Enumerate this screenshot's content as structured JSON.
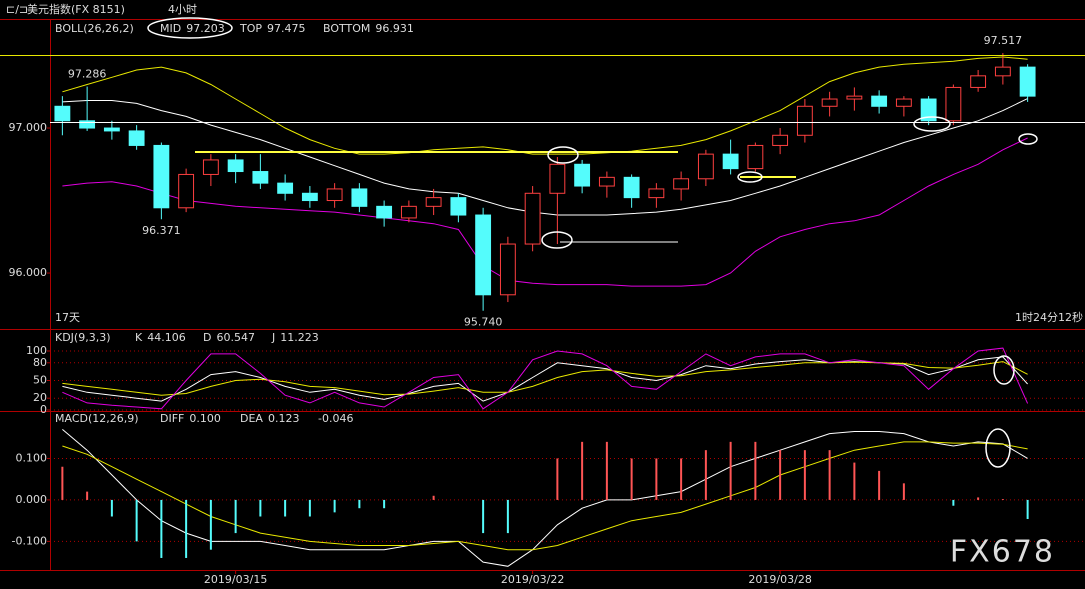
{
  "watermark": "FX678",
  "chart_data": [
    {
      "type": "candlestick",
      "title": "美元指数(FX 8151)",
      "subtitle": "4小时",
      "indicator": "BOLL(26,26,2)",
      "categories": [
        null,
        null,
        null,
        null,
        null,
        null,
        null,
        "2019/03/15",
        null,
        null,
        null,
        null,
        null,
        null,
        null,
        null,
        null,
        null,
        null,
        "2019/03/22",
        null,
        null,
        null,
        null,
        null,
        null,
        null,
        null,
        null,
        "2019/03/28",
        null,
        null,
        null,
        null,
        null,
        null,
        null,
        null,
        null,
        null
      ],
      "open": [
        97.15,
        97.05,
        97.0,
        96.98,
        96.88,
        96.45,
        96.68,
        96.78,
        96.7,
        96.62,
        96.55,
        96.5,
        96.58,
        96.46,
        96.38,
        96.46,
        96.52,
        96.4,
        95.85,
        96.2,
        96.55,
        96.75,
        96.6,
        96.66,
        96.52,
        96.58,
        96.65,
        96.82,
        96.72,
        96.88,
        96.95,
        97.15,
        97.2,
        97.22,
        97.15,
        97.2,
        97.05,
        97.28,
        97.36,
        97.42
      ],
      "high": [
        97.22,
        97.286,
        97.05,
        97.02,
        96.9,
        96.72,
        96.82,
        96.82,
        96.82,
        96.68,
        96.6,
        96.62,
        96.62,
        96.5,
        96.5,
        96.58,
        96.55,
        96.45,
        96.25,
        96.6,
        96.8,
        96.78,
        96.7,
        96.68,
        96.62,
        96.7,
        96.85,
        96.92,
        96.9,
        97.0,
        97.2,
        97.25,
        97.28,
        97.26,
        97.22,
        97.22,
        97.3,
        97.4,
        97.517,
        97.44
      ],
      "low": [
        96.95,
        96.98,
        96.92,
        96.85,
        96.371,
        96.42,
        96.6,
        96.62,
        96.58,
        96.5,
        96.45,
        96.45,
        96.42,
        96.32,
        96.35,
        96.4,
        96.35,
        95.74,
        95.8,
        96.15,
        96.2,
        96.55,
        96.52,
        96.45,
        96.45,
        96.5,
        96.6,
        96.68,
        96.7,
        96.82,
        96.9,
        97.08,
        97.12,
        97.1,
        97.08,
        97.02,
        97.02,
        97.25,
        97.3,
        97.18
      ],
      "close": [
        97.05,
        97.0,
        96.98,
        96.88,
        96.45,
        96.68,
        96.78,
        96.7,
        96.62,
        96.55,
        96.5,
        96.58,
        96.46,
        96.38,
        96.46,
        96.52,
        96.4,
        95.85,
        96.2,
        96.55,
        96.75,
        96.6,
        96.66,
        96.52,
        96.58,
        96.65,
        96.82,
        96.72,
        96.88,
        96.95,
        97.15,
        97.2,
        97.22,
        97.15,
        97.2,
        97.05,
        97.28,
        97.36,
        97.42,
        97.22
      ],
      "color_up": "#ff4040",
      "color_down": "#54fcfc",
      "series": [
        {
          "name": "MID",
          "last_label": "97.203",
          "color": "#ffffff",
          "values": [
            97.18,
            97.19,
            97.19,
            97.17,
            97.12,
            97.08,
            97.02,
            96.97,
            96.92,
            96.86,
            96.8,
            96.74,
            96.68,
            96.62,
            96.58,
            96.56,
            96.55,
            96.5,
            96.45,
            96.42,
            96.4,
            96.4,
            96.4,
            96.41,
            96.42,
            96.44,
            96.47,
            96.5,
            96.55,
            96.6,
            96.66,
            96.72,
            96.78,
            96.84,
            96.9,
            96.95,
            97.0,
            97.05,
            97.12,
            97.203
          ]
        },
        {
          "name": "TOP",
          "last_label": "97.475",
          "color": "#e8e800",
          "values": [
            97.25,
            97.3,
            97.35,
            97.4,
            97.42,
            97.38,
            97.3,
            97.2,
            97.1,
            97.0,
            96.92,
            96.86,
            96.82,
            96.82,
            96.83,
            96.85,
            96.86,
            96.87,
            96.85,
            96.82,
            96.82,
            96.82,
            96.83,
            96.84,
            96.86,
            96.88,
            96.92,
            96.98,
            97.05,
            97.12,
            97.22,
            97.32,
            97.38,
            97.42,
            97.44,
            97.45,
            97.46,
            97.48,
            97.49,
            97.475
          ]
        },
        {
          "name": "BOTTOM",
          "last_label": "96.931",
          "color": "#e000e0",
          "values": [
            96.6,
            96.62,
            96.63,
            96.6,
            96.55,
            96.5,
            96.48,
            96.46,
            96.45,
            96.44,
            96.43,
            96.42,
            96.4,
            96.38,
            96.36,
            96.34,
            96.3,
            96.05,
            95.95,
            95.93,
            95.92,
            95.92,
            95.92,
            95.91,
            95.91,
            95.91,
            95.92,
            96.0,
            96.15,
            96.25,
            96.3,
            96.34,
            96.36,
            96.4,
            96.5,
            96.6,
            96.68,
            96.75,
            96.85,
            96.931
          ]
        }
      ],
      "annotations": [
        {
          "value": 97.286,
          "label": "97.286",
          "color": "#ff4040"
        },
        {
          "value": 96.371,
          "label": "96.371",
          "color": "#54fcfc"
        },
        {
          "value": 95.74,
          "label": "95.740",
          "color": "#54fcfc"
        },
        {
          "value": 97.517,
          "label": "97.517",
          "color": "#ff4040"
        }
      ],
      "footer_left": "17天",
      "footer_right": "1时24分12秒",
      "ylim": [
        95.621,
        97.745
      ],
      "yticks": [
        {
          "value": 97,
          "label": "97.000"
        },
        {
          "value": 96,
          "label": "96.000"
        }
      ],
      "grid": false
    },
    {
      "type": "line",
      "indicator": "KDJ(9,3,3)",
      "series": [
        {
          "name": "K",
          "last_label": "44.106",
          "color": "#ffffff",
          "values": [
            40,
            30,
            25,
            20,
            15,
            35,
            60,
            65,
            55,
            40,
            30,
            35,
            25,
            18,
            28,
            40,
            45,
            15,
            30,
            55,
            80,
            75,
            70,
            55,
            50,
            60,
            75,
            70,
            78,
            82,
            85,
            80,
            82,
            80,
            78,
            60,
            70,
            85,
            90,
            44.106
          ]
        },
        {
          "name": "D",
          "last_label": "60.547",
          "color": "#e8e800",
          "values": [
            45,
            40,
            35,
            30,
            25,
            28,
            40,
            50,
            52,
            48,
            40,
            38,
            32,
            26,
            27,
            32,
            38,
            30,
            30,
            40,
            55,
            65,
            68,
            62,
            57,
            58,
            65,
            68,
            72,
            76,
            80,
            80,
            81,
            80,
            79,
            72,
            71,
            76,
            82,
            60.547
          ]
        },
        {
          "name": "J",
          "last_label": "11.223",
          "color": "#e000e0",
          "values": [
            30,
            12,
            8,
            5,
            2,
            50,
            95,
            95,
            62,
            25,
            12,
            30,
            12,
            5,
            30,
            55,
            60,
            2,
            30,
            85,
            100,
            95,
            75,
            40,
            35,
            65,
            95,
            75,
            90,
            95,
            95,
            80,
            85,
            80,
            75,
            35,
            70,
            100,
            105,
            11.223
          ]
        }
      ],
      "ylim": [
        -1.7,
        133.9
      ],
      "yticks": [
        100,
        80,
        50,
        20,
        0
      ],
      "grid": true
    },
    {
      "type": "line",
      "indicator": "MACD(12,26,9)",
      "series": [
        {
          "name": "DIFF",
          "last_label": "0.100",
          "color": "#ffffff",
          "values": [
            0.17,
            0.12,
            0.06,
            0.0,
            -0.05,
            -0.08,
            -0.1,
            -0.1,
            -0.1,
            -0.11,
            -0.12,
            -0.12,
            -0.12,
            -0.12,
            -0.11,
            -0.1,
            -0.1,
            -0.15,
            -0.16,
            -0.12,
            -0.06,
            -0.02,
            0.0,
            0.0,
            0.01,
            0.02,
            0.05,
            0.08,
            0.1,
            0.12,
            0.14,
            0.16,
            0.165,
            0.165,
            0.16,
            0.14,
            0.13,
            0.14,
            0.135,
            0.1
          ]
        },
        {
          "name": "DEA",
          "last_label": "0.123",
          "color": "#e8e800",
          "values": [
            0.13,
            0.11,
            0.08,
            0.05,
            0.02,
            -0.01,
            -0.04,
            -0.06,
            -0.08,
            -0.09,
            -0.1,
            -0.105,
            -0.11,
            -0.11,
            -0.11,
            -0.105,
            -0.1,
            -0.11,
            -0.12,
            -0.12,
            -0.11,
            -0.09,
            -0.07,
            -0.05,
            -0.04,
            -0.03,
            -0.01,
            0.01,
            0.03,
            0.06,
            0.08,
            0.1,
            0.12,
            0.13,
            0.14,
            0.14,
            0.137,
            0.137,
            0.134,
            0.123
          ]
        },
        {
          "kind": "bar",
          "last_label": "-0.046",
          "color": "#ff5555",
          "color_negative": "#54fcfc",
          "values": [
            0.08,
            0.02,
            -0.04,
            -0.1,
            -0.14,
            -0.14,
            -0.12,
            -0.08,
            -0.04,
            -0.04,
            -0.04,
            -0.03,
            -0.02,
            -0.02,
            0.0,
            0.01,
            0.0,
            -0.08,
            -0.08,
            0.0,
            0.1,
            0.14,
            0.14,
            0.1,
            0.1,
            0.1,
            0.12,
            0.14,
            0.14,
            0.12,
            0.12,
            0.12,
            0.09,
            0.07,
            0.04,
            0.0,
            -0.014,
            0.006,
            0.002,
            -0.046
          ]
        }
      ],
      "ylim": [
        -0.169,
        0.212
      ],
      "yticks": [
        {
          "value": 0.1,
          "label": "0.100"
        },
        {
          "value": 0,
          "label": "0.000"
        },
        {
          "value": -0.1,
          "label": "-0.100"
        }
      ],
      "grid": true
    }
  ]
}
